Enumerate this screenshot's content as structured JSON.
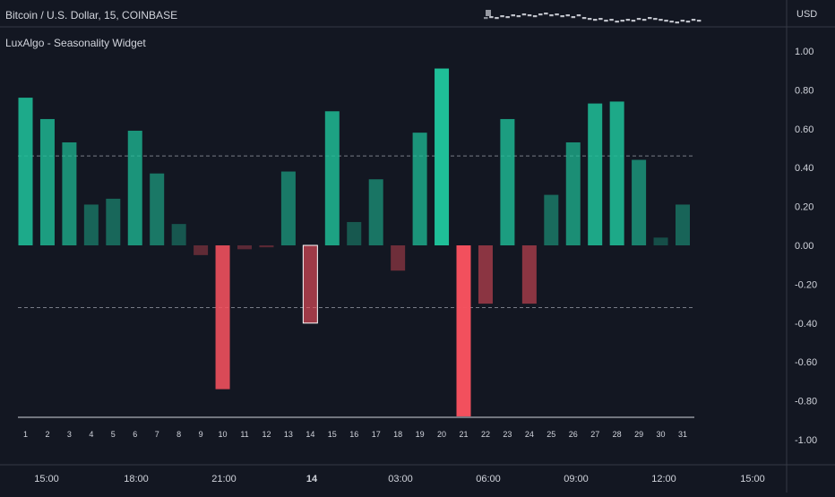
{
  "header": {
    "symbol": "Bitcoin / U.S. Dollar, 15, COINBASE",
    "indicator": "LuxAlgo - Seasonality Widget",
    "currency": "USD"
  },
  "time_axis": {
    "labels": [
      "15:00",
      "18:00",
      "21:00",
      "14",
      "03:00",
      "06:00",
      "09:00",
      "12:00",
      "15:00"
    ]
  },
  "colors": {
    "background": "#131722",
    "positive": "#1fbf98",
    "negative": "#f7525f",
    "axis_text": "#d1d4dc",
    "grid_line": "#787b86",
    "divider": "#363a45"
  },
  "chart_data": {
    "type": "bar",
    "title": "",
    "xlabel": "",
    "ylabel": "",
    "categories": [
      "1",
      "2",
      "3",
      "4",
      "5",
      "6",
      "7",
      "8",
      "9",
      "10",
      "11",
      "12",
      "13",
      "14",
      "15",
      "16",
      "17",
      "18",
      "19",
      "20",
      "21",
      "22",
      "23",
      "24",
      "25",
      "26",
      "27",
      "28",
      "29",
      "30",
      "31"
    ],
    "values": [
      0.76,
      0.65,
      0.53,
      0.21,
      0.24,
      0.59,
      0.37,
      0.11,
      -0.05,
      -0.74,
      -0.02,
      -0.01,
      0.38,
      -0.4,
      0.69,
      0.12,
      0.34,
      -0.13,
      0.58,
      0.91,
      -0.88,
      -0.3,
      0.65,
      -0.3,
      0.26,
      0.53,
      0.73,
      0.74,
      0.44,
      0.04,
      0.21
    ],
    "highlighted_category": "14",
    "ylim": [
      -1.0,
      1.0
    ],
    "yticks": [
      "1.00",
      "0.80",
      "0.60",
      "0.40",
      "0.20",
      "0.00",
      "-0.20",
      "-0.40",
      "-0.60",
      "-0.80",
      "-1.00"
    ],
    "reference_lines": [
      0.46,
      -0.32
    ],
    "grid": false,
    "legend": "none"
  }
}
